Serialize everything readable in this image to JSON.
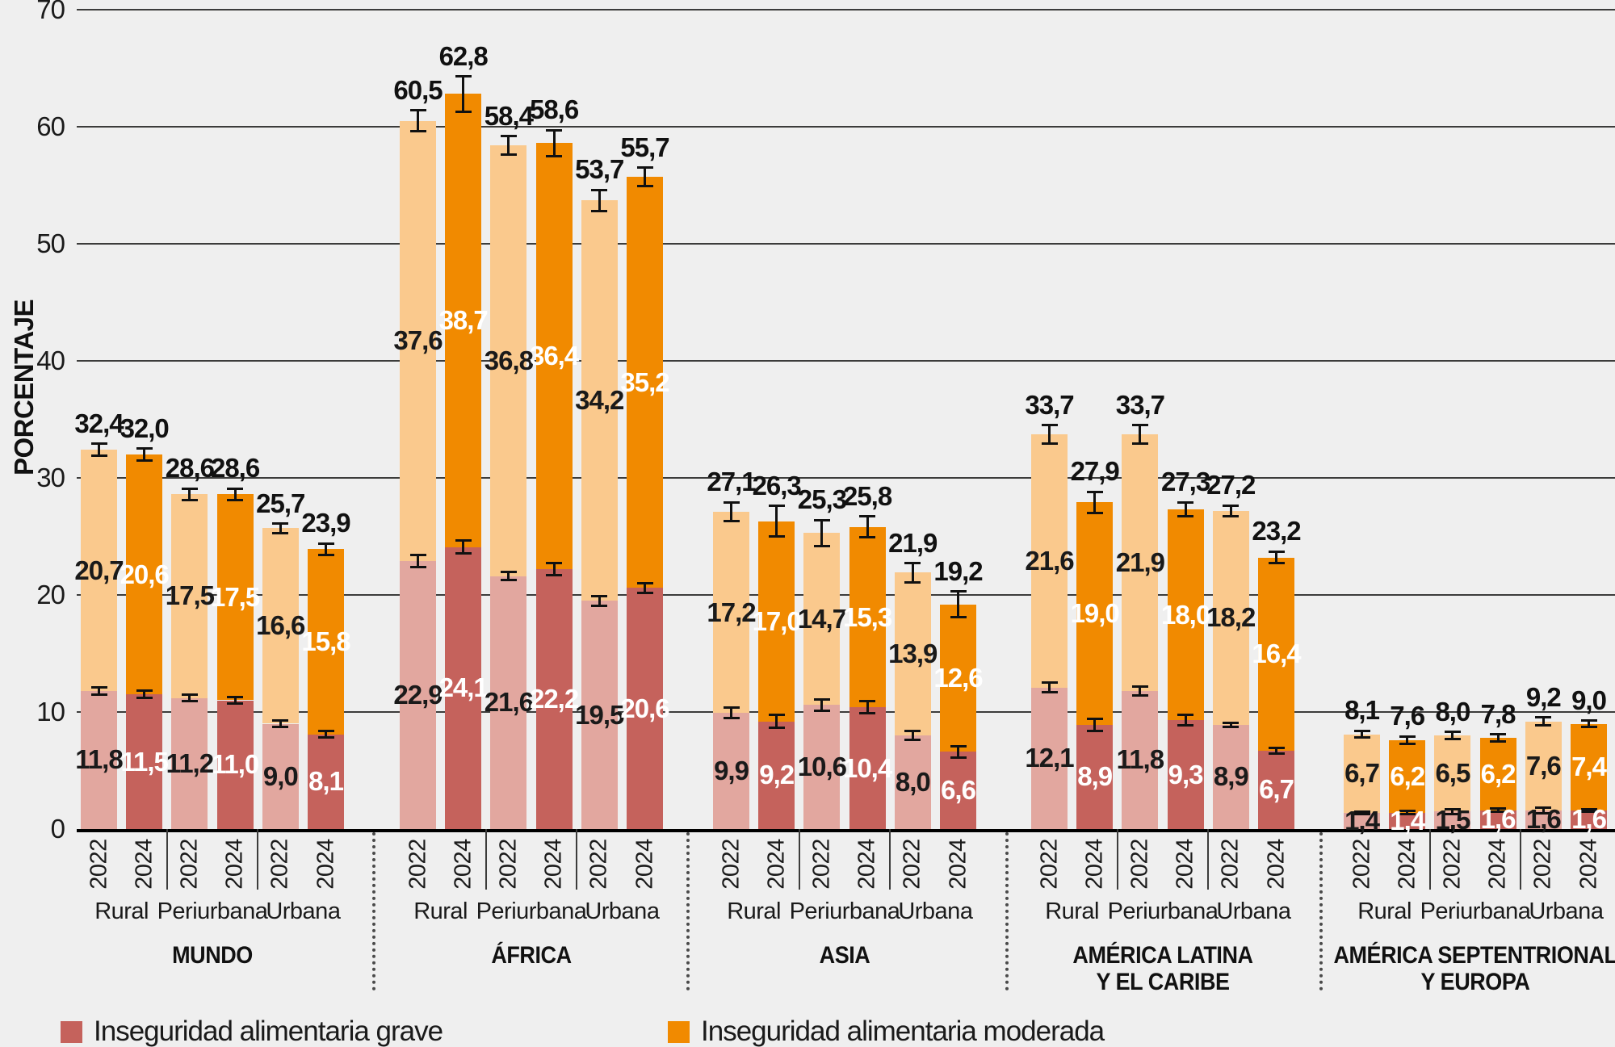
{
  "chart_data": {
    "type": "bar",
    "stacked": true,
    "unit": "%",
    "ylabel": "PORCENTAJE",
    "ylim": [
      0,
      70
    ],
    "yticks": [
      0,
      10,
      20,
      30,
      40,
      50,
      60,
      70
    ],
    "grid": true,
    "legend_position": "bottom-left",
    "colors": {
      "background": "#EFEFEF",
      "grid": "#3C3C3B",
      "axis": "#000000",
      "grave_2022": "#E2A79F",
      "grave_2024": "#C5625C",
      "moderada_2022": "#FAC98D",
      "moderada_2024": "#F18A00"
    },
    "legend": {
      "grave": {
        "label": "Inseguridad alimentaria grave",
        "color": "#C5625C"
      },
      "moderada": {
        "label": "Inseguridad alimentaria moderada",
        "color": "#F18A00"
      }
    },
    "groups": [
      {
        "label": [
          "MUNDO"
        ],
        "areas": [
          "Rural",
          "Periurbana",
          "Urbana"
        ],
        "bars": [
          {
            "year": "2022",
            "area": "Rural",
            "grave": 11.8,
            "moderada": 20.7,
            "total": 32.4,
            "err_total": 0.5,
            "err_grave": 0.3
          },
          {
            "year": "2024",
            "area": "Rural",
            "grave": 11.5,
            "moderada": 20.6,
            "total": 32.0,
            "err_total": 0.5,
            "err_grave": 0.3
          },
          {
            "year": "2022",
            "area": "Periurbana",
            "grave": 11.2,
            "moderada": 17.5,
            "total": 28.6,
            "err_total": 0.5,
            "err_grave": 0.3
          },
          {
            "year": "2024",
            "area": "Periurbana",
            "grave": 11.0,
            "moderada": 17.5,
            "total": 28.6,
            "err_total": 0.5,
            "err_grave": 0.3
          },
          {
            "year": "2022",
            "area": "Urbana",
            "grave": 9.0,
            "moderada": 16.6,
            "total": 25.7,
            "err_total": 0.4,
            "err_grave": 0.25
          },
          {
            "year": "2024",
            "area": "Urbana",
            "grave": 8.1,
            "moderada": 15.8,
            "total": 23.9,
            "err_total": 0.5,
            "err_grave": 0.3
          }
        ]
      },
      {
        "label": [
          "ÁFRICA"
        ],
        "areas": [
          "Rural",
          "Periurbana",
          "Urbana"
        ],
        "bars": [
          {
            "year": "2022",
            "area": "Rural",
            "grave": 22.9,
            "moderada": 37.6,
            "total": 60.5,
            "err_total": 0.9,
            "err_grave": 0.5
          },
          {
            "year": "2024",
            "area": "Rural",
            "grave": 24.1,
            "moderada": 38.7,
            "total": 62.8,
            "err_total": 1.5,
            "err_grave": 0.55
          },
          {
            "year": "2022",
            "area": "Periurbana",
            "grave": 21.6,
            "moderada": 36.8,
            "total": 58.4,
            "err_total": 0.8,
            "err_grave": 0.35
          },
          {
            "year": "2024",
            "area": "Periurbana",
            "grave": 22.2,
            "moderada": 36.4,
            "total": 58.6,
            "err_total": 1.1,
            "err_grave": 0.5
          },
          {
            "year": "2022",
            "area": "Urbana",
            "grave": 19.5,
            "moderada": 34.2,
            "total": 53.7,
            "err_total": 0.9,
            "err_grave": 0.4
          },
          {
            "year": "2024",
            "area": "Urbana",
            "grave": 20.6,
            "moderada": 35.2,
            "total": 55.7,
            "err_total": 0.8,
            "err_grave": 0.4
          }
        ]
      },
      {
        "label": [
          "ASIA"
        ],
        "areas": [
          "Rural",
          "Periurbana",
          "Urbana"
        ],
        "bars": [
          {
            "year": "2022",
            "area": "Rural",
            "grave": 9.9,
            "moderada": 17.2,
            "total": 27.1,
            "err_total": 0.8,
            "err_grave": 0.45
          },
          {
            "year": "2024",
            "area": "Rural",
            "grave": 9.2,
            "moderada": 17.0,
            "total": 26.3,
            "err_total": 1.3,
            "err_grave": 0.55
          },
          {
            "year": "2022",
            "area": "Periurbana",
            "grave": 10.6,
            "moderada": 14.7,
            "total": 25.3,
            "err_total": 1.1,
            "err_grave": 0.5
          },
          {
            "year": "2024",
            "area": "Periurbana",
            "grave": 10.4,
            "moderada": 15.3,
            "total": 25.8,
            "err_total": 0.9,
            "err_grave": 0.5
          },
          {
            "year": "2022",
            "area": "Urbana",
            "grave": 8.0,
            "moderada": 13.9,
            "total": 21.9,
            "err_total": 0.8,
            "err_grave": 0.35
          },
          {
            "year": "2024",
            "area": "Urbana",
            "grave": 6.6,
            "moderada": 12.6,
            "total": 19.2,
            "err_total": 1.1,
            "err_grave": 0.5
          }
        ]
      },
      {
        "label": [
          "AMÉRICA LATINA",
          "Y EL CARIBE"
        ],
        "areas": [
          "Rural",
          "Periurbana",
          "Urbana"
        ],
        "bars": [
          {
            "year": "2022",
            "area": "Rural",
            "grave": 12.1,
            "moderada": 21.6,
            "total": 33.7,
            "err_total": 0.8,
            "err_grave": 0.4
          },
          {
            "year": "2024",
            "area": "Rural",
            "grave": 8.9,
            "moderada": 19.0,
            "total": 27.9,
            "err_total": 0.9,
            "err_grave": 0.5
          },
          {
            "year": "2022",
            "area": "Periurbana",
            "grave": 11.8,
            "moderada": 21.9,
            "total": 33.7,
            "err_total": 0.8,
            "err_grave": 0.4
          },
          {
            "year": "2024",
            "area": "Periurbana",
            "grave": 9.3,
            "moderada": 18.0,
            "total": 27.3,
            "err_total": 0.6,
            "err_grave": 0.45
          },
          {
            "year": "2022",
            "area": "Urbana",
            "grave": 8.9,
            "moderada": 18.2,
            "total": 27.2,
            "err_total": 0.45,
            "err_grave": 0.2
          },
          {
            "year": "2024",
            "area": "Urbana",
            "grave": 6.7,
            "moderada": 16.4,
            "total": 23.2,
            "err_total": 0.5,
            "err_grave": 0.25
          }
        ]
      },
      {
        "label": [
          "AMÉRICA SEPTENTRIONAL",
          "Y EUROPA"
        ],
        "areas": [
          "Rural",
          "Periurbana",
          "Urbana"
        ],
        "bars": [
          {
            "year": "2022",
            "area": "Rural",
            "grave": 1.4,
            "moderada": 6.7,
            "total": 8.1,
            "err_total": 0.3,
            "err_grave": 0.1
          },
          {
            "year": "2024",
            "area": "Rural",
            "grave": 1.4,
            "moderada": 6.2,
            "total": 7.6,
            "err_total": 0.3,
            "err_grave": 0.15
          },
          {
            "year": "2022",
            "area": "Periurbana",
            "grave": 1.5,
            "moderada": 6.5,
            "total": 8.0,
            "err_total": 0.3,
            "err_grave": 0.2
          },
          {
            "year": "2024",
            "area": "Periurbana",
            "grave": 1.6,
            "moderada": 6.2,
            "total": 7.8,
            "err_total": 0.3,
            "err_grave": 0.15
          },
          {
            "year": "2022",
            "area": "Urbana",
            "grave": 1.6,
            "moderada": 7.6,
            "total": 9.2,
            "err_total": 0.35,
            "err_grave": 0.25
          },
          {
            "year": "2024",
            "area": "Urbana",
            "grave": 1.6,
            "moderada": 7.4,
            "total": 9.0,
            "err_total": 0.25,
            "err_grave": 0.1
          }
        ]
      }
    ]
  }
}
